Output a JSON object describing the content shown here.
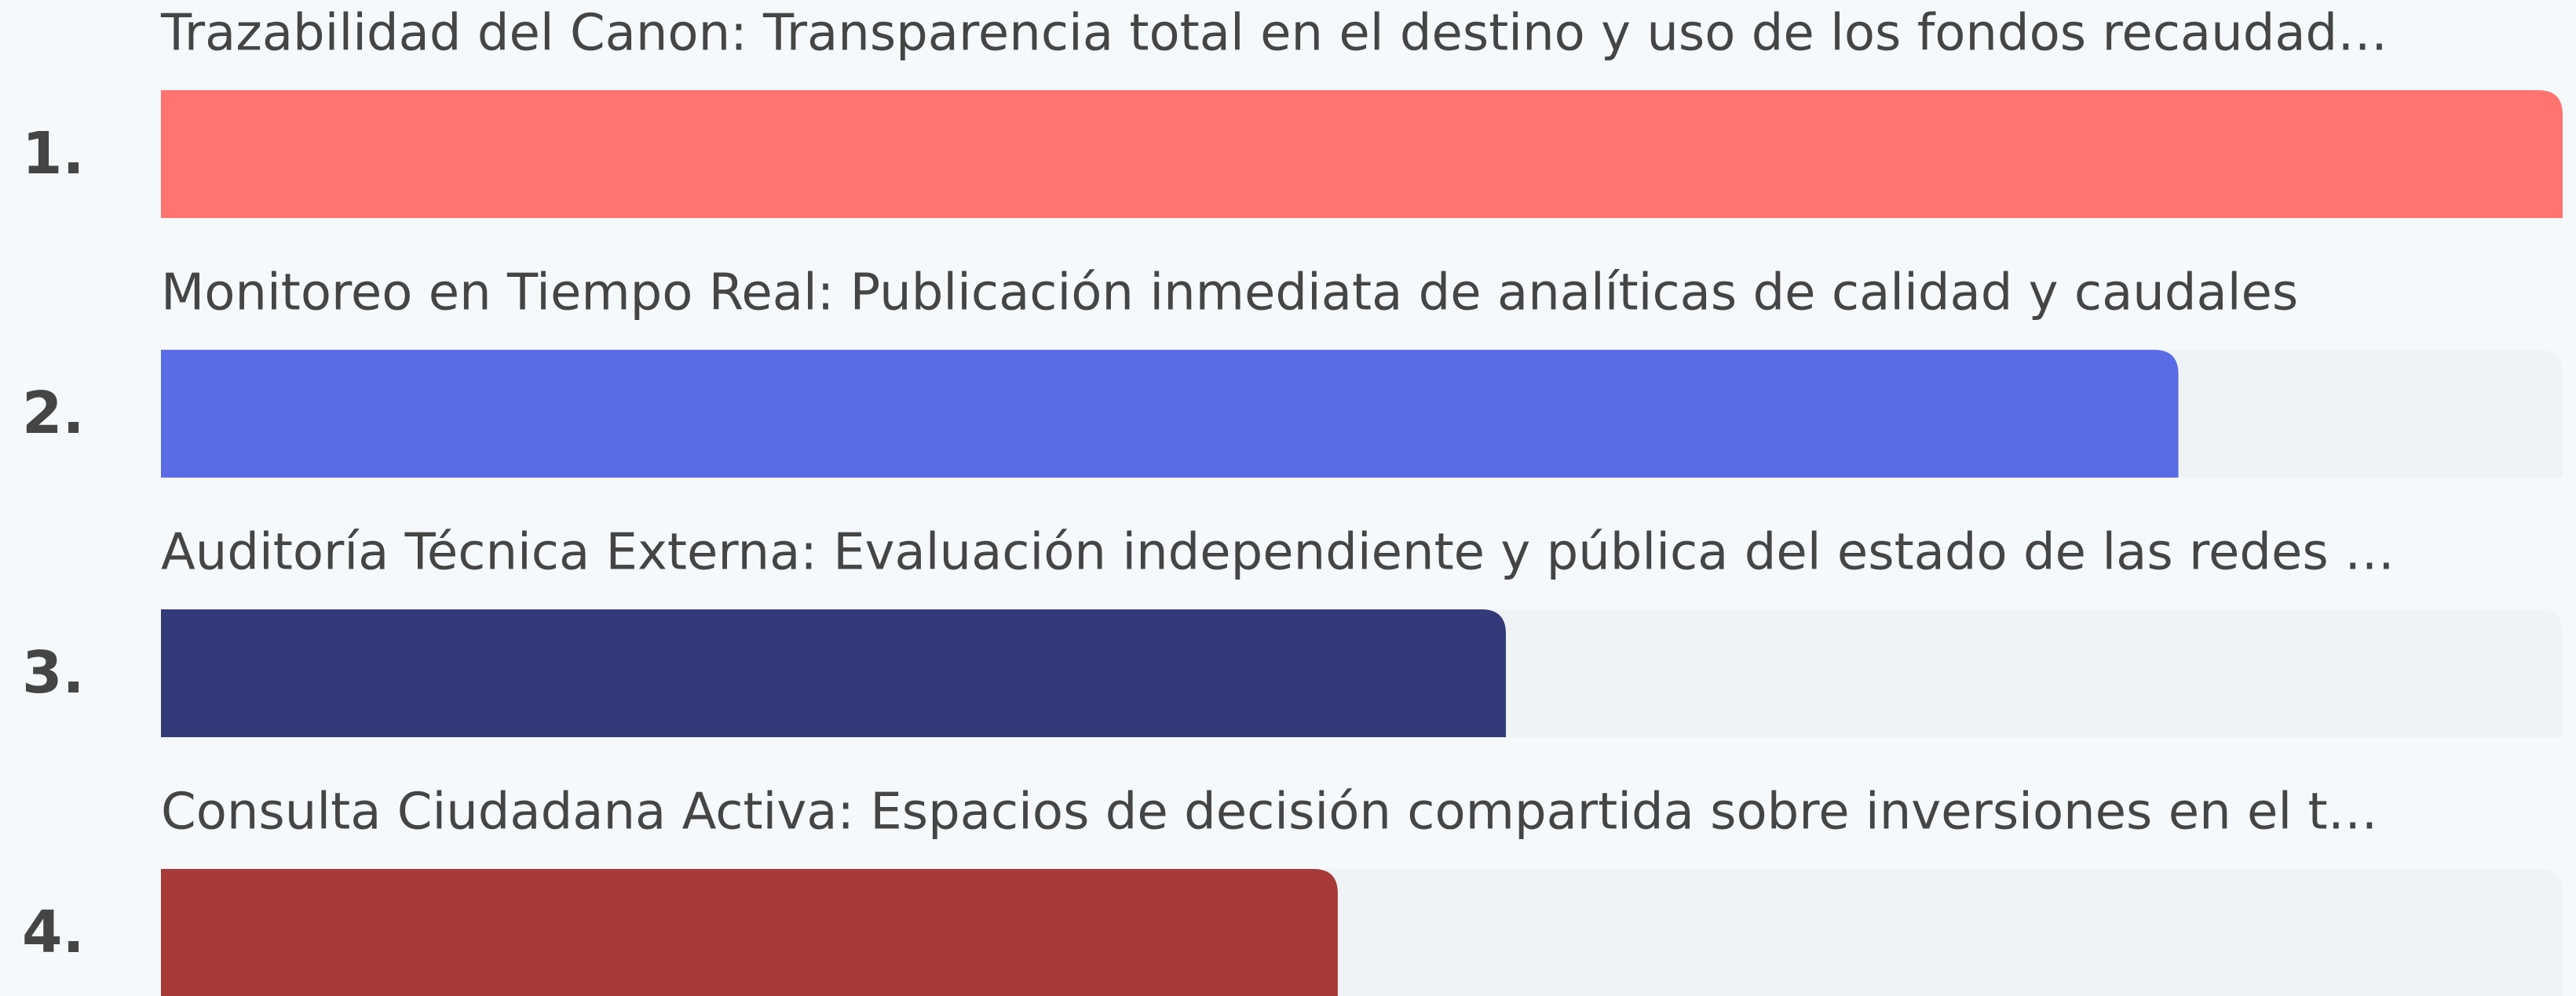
{
  "chart_data": {
    "type": "ranked-bar",
    "categories": [
      "Trazabilidad del Canon: Transparencia total en el destino y uso de los fondos recaudad…",
      "Monitoreo en Tiempo Real: Publicación inmediata de analíticas de calidad y caudales",
      "Auditoría Técnica Externa: Evaluación independiente y pública del estado de las redes …",
      "Consulta Ciudadana Activa: Espacios de decisión compartida sobre inversiones en el t…"
    ],
    "ranks": [
      "1.",
      "2.",
      "3.",
      "4."
    ],
    "values": [
      100,
      84,
      56,
      49
    ],
    "colors": [
      "#ff7370",
      "#5a6be6",
      "#323a7a",
      "#a83a3a"
    ],
    "track_color": "#eff3f6",
    "xlim": [
      0,
      100
    ]
  }
}
